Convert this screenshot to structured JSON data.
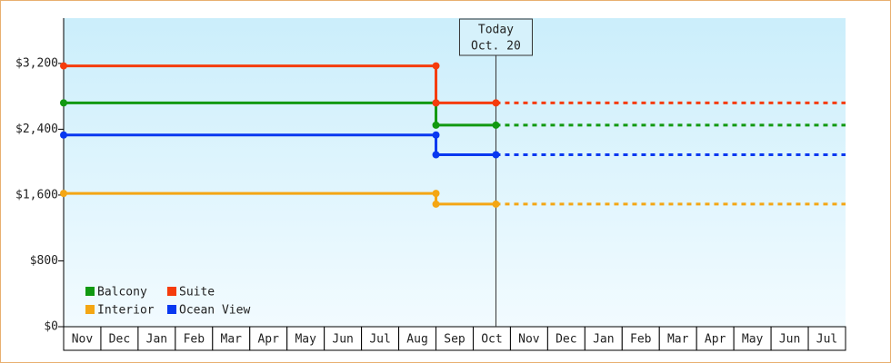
{
  "chart_data": {
    "type": "step-line",
    "categories": [
      "Nov",
      "Dec",
      "Jan",
      "Feb",
      "Mar",
      "Apr",
      "May",
      "Jun",
      "Jul",
      "Aug",
      "Sep",
      "Oct",
      "Nov",
      "Dec",
      "Jan",
      "Feb",
      "Mar",
      "Apr",
      "May",
      "Jun",
      "Jul"
    ],
    "x": [
      0,
      10,
      10,
      11.61
    ],
    "xlim": [
      0,
      21
    ],
    "ylim": [
      0,
      3750
    ],
    "yticks": [
      {
        "value": 0,
        "label": "$0"
      },
      {
        "value": 800,
        "label": "$800"
      },
      {
        "value": 1600,
        "label": "$1,600"
      },
      {
        "value": 2400,
        "label": "$2,400"
      },
      {
        "value": 3200,
        "label": "$3,200"
      }
    ],
    "series": [
      {
        "name": "Balcony",
        "color": "#119911",
        "values": [
          2720,
          2720,
          2450,
          2450
        ]
      },
      {
        "name": "Suite",
        "color": "#f53c0c",
        "values": [
          3170,
          3170,
          2720,
          2720
        ]
      },
      {
        "name": "Interior",
        "color": "#f4a614",
        "values": [
          1620,
          1620,
          1490,
          1490
        ]
      },
      {
        "name": "Ocean View",
        "color": "#0838f0",
        "values": [
          2330,
          2330,
          2090,
          2090
        ]
      }
    ],
    "today": {
      "x": 11.61,
      "label": "Today",
      "date": "Oct. 20"
    }
  }
}
